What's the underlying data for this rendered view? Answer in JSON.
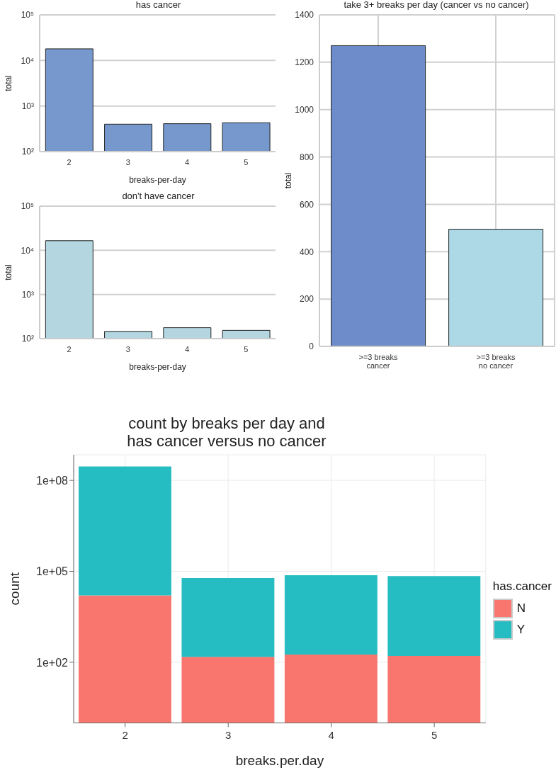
{
  "chart_data": [
    {
      "type": "bar",
      "title": "has cancer",
      "xlabel": "breaks-per-day",
      "ylabel": "total",
      "categories": [
        "2",
        "3",
        "4",
        "5"
      ],
      "values": [
        18000,
        400,
        410,
        430
      ],
      "color": "#7698cc",
      "log": true,
      "ylim": [
        100,
        100000
      ],
      "yticks": [
        {
          "value": 100,
          "label": "10²"
        },
        {
          "value": 1000,
          "label": "10³"
        },
        {
          "value": 10000,
          "label": "10⁴"
        },
        {
          "value": 100000,
          "label": "10⁵"
        }
      ],
      "grid": "y"
    },
    {
      "type": "bar",
      "title": "don't have cancer",
      "xlabel": "breaks-per-day",
      "ylabel": "total",
      "categories": [
        "2",
        "3",
        "4",
        "5"
      ],
      "values": [
        16500,
        146,
        177,
        154
      ],
      "color": "#b3d6e0",
      "log": true,
      "ylim": [
        100,
        100000
      ],
      "yticks": [
        {
          "value": 100,
          "label": "10²"
        },
        {
          "value": 1000,
          "label": "10³"
        },
        {
          "value": 10000,
          "label": "10⁴"
        },
        {
          "value": 100000,
          "label": "10⁵"
        }
      ],
      "grid": "y"
    },
    {
      "type": "bar",
      "title": "take 3+ breaks per day (cancer vs no cancer)",
      "ylabel": "total",
      "categories": [
        ">=3 breaks\ncancer",
        ">=3 breaks\nno cancer"
      ],
      "values": [
        1270,
        495
      ],
      "colors": [
        "#6d8cc9",
        "#add8e6"
      ],
      "ylim": [
        0,
        1400
      ],
      "yticks": [
        0,
        200,
        400,
        600,
        800,
        1000,
        1200,
        1400
      ],
      "grid": true
    },
    {
      "type": "bar",
      "title": "count by breaks per day and\nhas cancer versus no cancer",
      "xlabel": "breaks.per.day",
      "ylabel": "count",
      "categories": [
        "2",
        "3",
        "4",
        "5"
      ],
      "stacked": true,
      "series": [
        {
          "name": "N",
          "color": "#f8766d",
          "values": [
            16000,
            150,
            180,
            160
          ]
        },
        {
          "name": "Y",
          "color": "#26bdc2",
          "values": [
            288000000,
            60000,
            74000,
            69000
          ]
        }
      ],
      "log": true,
      "ylim": [
        1,
        700000000
      ],
      "yticks": [
        {
          "value": 100,
          "label": "1e+02"
        },
        {
          "value": 100000,
          "label": "1e+05"
        },
        {
          "value": 100000000,
          "label": "1e+08"
        }
      ],
      "grid": true,
      "legend": "right",
      "legend_title": "has.cancer"
    }
  ]
}
